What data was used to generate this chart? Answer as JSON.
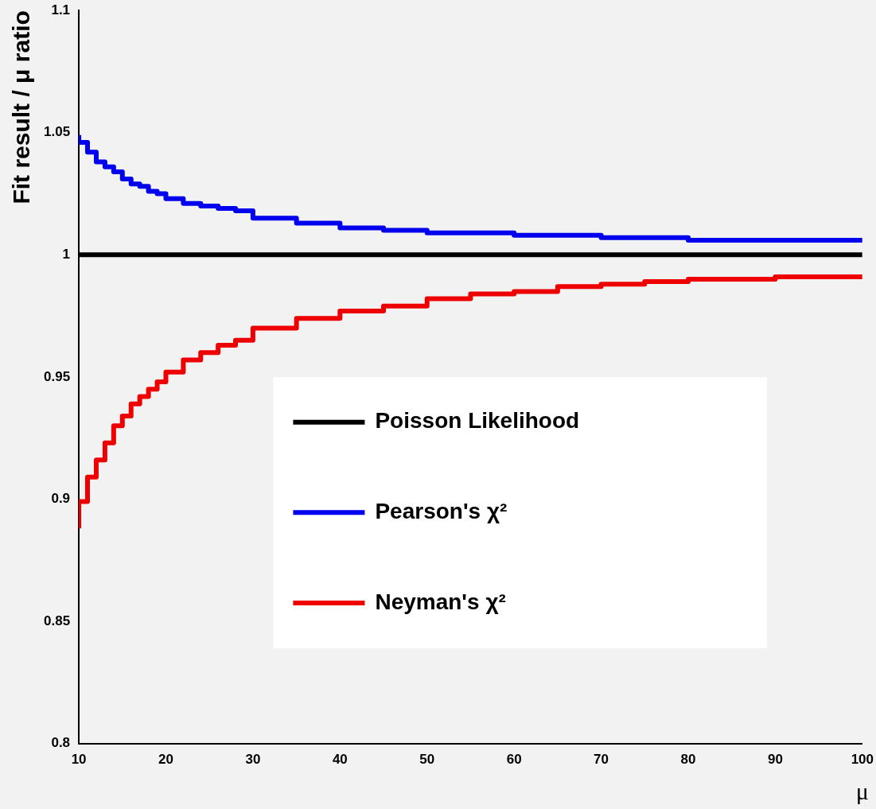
{
  "chart_data": {
    "type": "step",
    "ylabel": "Fit result / μ ratio",
    "xlabel": "μ",
    "legend": "right",
    "marker": "none",
    "line_style": "solid",
    "grid": false,
    "xlim": [
      10,
      100
    ],
    "xticks": [
      10,
      20,
      30,
      40,
      50,
      60,
      70,
      80,
      90,
      100
    ],
    "ylim": [
      0.8,
      1.1
    ],
    "yticks": [
      0.8,
      0.85,
      0.9,
      0.95,
      1,
      1.05,
      1.1
    ],
    "series": [
      {
        "name": "Poisson Likelihood",
        "color": "#000000",
        "x": [
          10,
          100
        ],
        "values": [
          1,
          1
        ]
      },
      {
        "name": "Pearson's χ²",
        "color": "#0000ee",
        "x": [
          10,
          11,
          12,
          13,
          14,
          15,
          16,
          17,
          18,
          19,
          20,
          22,
          24,
          26,
          28,
          30,
          35,
          40,
          45,
          50,
          55,
          60,
          65,
          70,
          75,
          80,
          85,
          90,
          95,
          100
        ],
        "values": [
          1.049,
          1.046,
          1.042,
          1.038,
          1.036,
          1.034,
          1.031,
          1.029,
          1.028,
          1.026,
          1.025,
          1.023,
          1.021,
          1.02,
          1.019,
          1.018,
          1.015,
          1.013,
          1.011,
          1.01,
          1.009,
          1.009,
          1.008,
          1.008,
          1.007,
          1.007,
          1.006,
          1.006,
          1.006,
          1.006
        ]
      },
      {
        "name": "Neyman's χ²",
        "color": "#ee0000",
        "x": [
          10,
          11,
          12,
          13,
          14,
          15,
          16,
          17,
          18,
          19,
          20,
          22,
          24,
          26,
          28,
          30,
          35,
          40,
          45,
          50,
          55,
          60,
          65,
          70,
          75,
          80,
          85,
          90,
          95,
          100
        ],
        "values": [
          0.888,
          0.899,
          0.909,
          0.916,
          0.923,
          0.93,
          0.934,
          0.939,
          0.942,
          0.945,
          0.948,
          0.952,
          0.957,
          0.96,
          0.963,
          0.965,
          0.97,
          0.974,
          0.977,
          0.979,
          0.982,
          0.984,
          0.985,
          0.987,
          0.988,
          0.989,
          0.99,
          0.99,
          0.991,
          0.991
        ]
      }
    ]
  }
}
